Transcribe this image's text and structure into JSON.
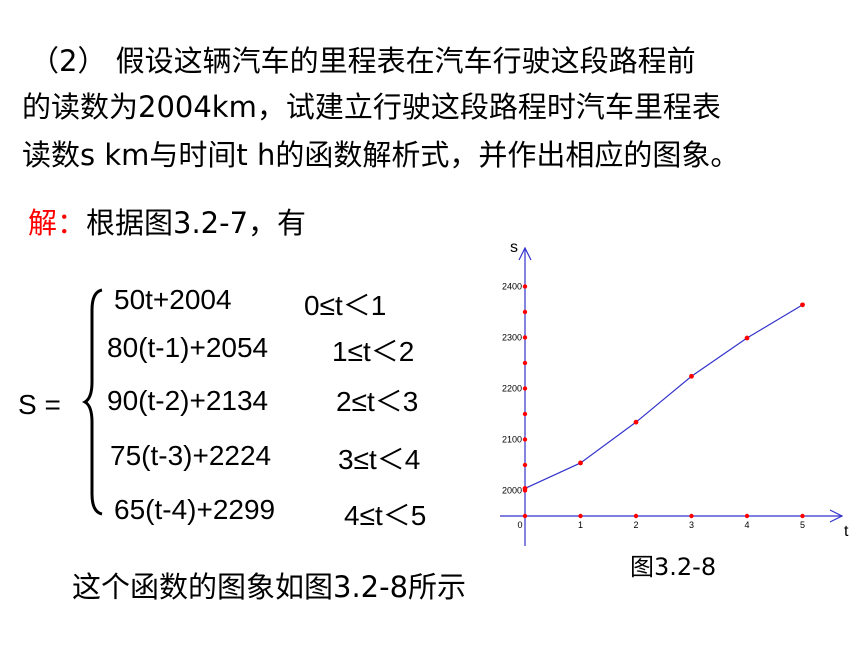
{
  "problem": {
    "line1": "（2） 假设这辆汽车的里程表在汽车行驶这段路程前",
    "line2": "的读数为2004km，试建立行驶这段路程时汽车里程表",
    "line3": "读数s km与时间t h的函数解析式，并作出相应的图象。"
  },
  "solution": {
    "label": "解：",
    "text": "根据图3.2-7，有",
    "label_color": "#ff0000"
  },
  "system": {
    "lhs": "S =",
    "pieces": [
      {
        "expr": "50t+2004",
        "cond": "0≤t＜1"
      },
      {
        "expr": "80(t-1)+2054",
        "cond": "1≤t＜2"
      },
      {
        "expr": "90(t-2)+2134",
        "cond": "2≤t＜3"
      },
      {
        "expr": "75(t-3)+2224",
        "cond": "3≤t＜4"
      },
      {
        "expr": "65(t-4)+2299",
        "cond": "4≤t＜5"
      }
    ]
  },
  "footer": "这个函数的图象如图3.2-8所示",
  "chart_caption": "图3.2-8",
  "chart_data": {
    "type": "line",
    "xlabel": "t",
    "ylabel": "s",
    "x_ticks": [
      "0",
      "1",
      "2",
      "3",
      "4",
      "5"
    ],
    "y_ticks": [
      "2000",
      "2100",
      "2200",
      "2300",
      "2400"
    ],
    "xlim": [
      0,
      5.5
    ],
    "ylim": [
      1950,
      2450
    ],
    "x": [
      0,
      1,
      2,
      3,
      4,
      5
    ],
    "y": [
      2004,
      2054,
      2134,
      2224,
      2299,
      2364
    ],
    "line_color": "#3333cc",
    "marker_color": "#ff0000",
    "axis_color": "#3333cc"
  }
}
